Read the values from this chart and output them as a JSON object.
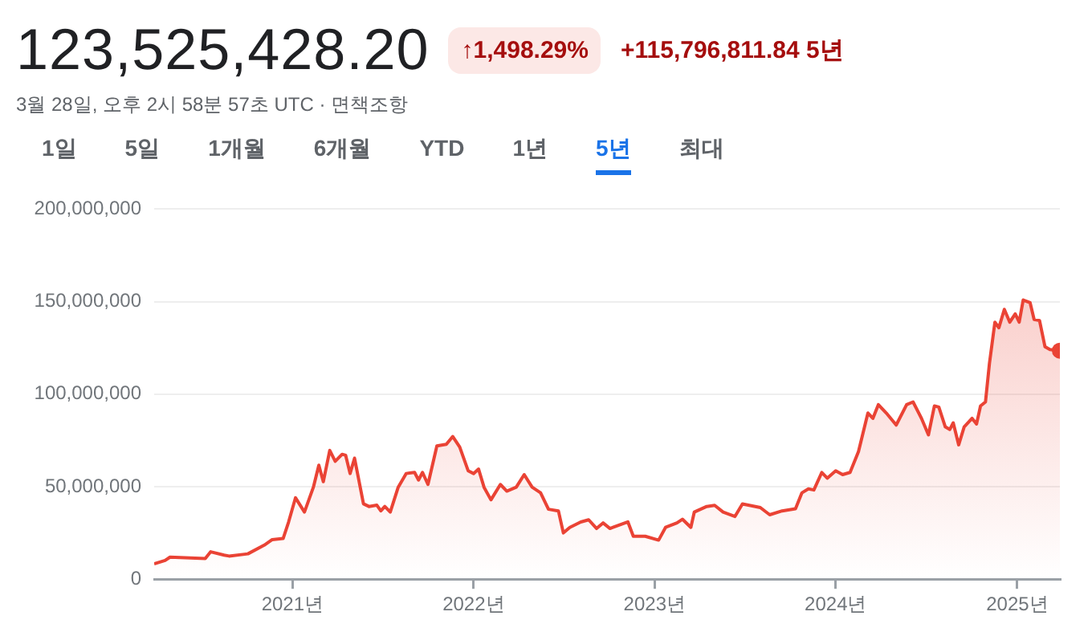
{
  "chart_data": {
    "type": "area",
    "title": "123,525,428.20",
    "subtitle": "3월 28일, 오후 2시 58분 57초 UTC · 면책조항",
    "annotations": [
      "↑1,498.29%",
      "+115,796,811.84 5년",
      "1일",
      "5일",
      "1개월",
      "6개월",
      "YTD",
      "1년",
      "5년",
      "최대"
    ],
    "x": [
      "2020-03-28",
      "2020-04-19",
      "2020-04-29",
      "2020-07-09",
      "2020-07-20",
      "2020-08-16",
      "2020-08-26",
      "2020-10-03",
      "2020-11-05",
      "2020-11-21",
      "2020-12-13",
      "2020-12-24",
      "2021-01-07",
      "2021-01-25",
      "2021-02-12",
      "2021-02-23",
      "2021-03-04",
      "2021-03-17",
      "2021-03-28",
      "2021-04-11",
      "2021-04-18",
      "2021-04-27",
      "2021-05-06",
      "2021-05-24",
      "2021-06-04",
      "2021-06-20",
      "2021-06-28",
      "2021-07-06",
      "2021-07-17",
      "2021-08-02",
      "2021-08-18",
      "2021-09-04",
      "2021-09-12",
      "2021-09-20",
      "2021-10-01",
      "2021-10-19",
      "2021-11-07",
      "2021-11-20",
      "2021-12-04",
      "2021-12-21",
      "2022-01-01",
      "2022-01-11",
      "2022-01-22",
      "2022-02-05",
      "2022-02-24",
      "2022-03-09",
      "2022-03-28",
      "2022-04-13",
      "2022-04-29",
      "2022-05-16",
      "2022-06-01",
      "2022-06-21",
      "2022-07-01",
      "2022-07-14",
      "2022-08-05",
      "2022-08-21",
      "2022-09-06",
      "2022-09-19",
      "2022-10-03",
      "2022-11-08",
      "2022-11-19",
      "2022-12-13",
      "2023-01-09",
      "2023-01-23",
      "2023-02-15",
      "2023-02-26",
      "2023-03-15",
      "2023-03-22",
      "2023-04-16",
      "2023-05-02",
      "2023-05-19",
      "2023-06-12",
      "2023-06-27",
      "2023-08-02",
      "2023-08-21",
      "2023-09-15",
      "2023-10-12",
      "2023-10-25",
      "2023-11-07",
      "2023-11-18",
      "2023-12-04",
      "2023-12-15",
      "2024-01-01",
      "2024-01-15",
      "2024-01-30",
      "2024-02-16",
      "2024-03-06",
      "2024-03-16",
      "2024-03-27",
      "2024-04-12",
      "2024-05-02",
      "2024-05-23",
      "2024-06-05",
      "2024-06-22",
      "2024-07-06",
      "2024-07-18",
      "2024-07-27",
      "2024-08-09",
      "2024-08-18",
      "2024-08-25",
      "2024-09-05",
      "2024-09-16",
      "2024-10-02",
      "2024-10-11",
      "2024-10-19",
      "2024-10-29",
      "2024-11-06",
      "2024-11-17",
      "2024-11-25",
      "2024-12-06",
      "2024-12-17",
      "2024-12-28",
      "2025-01-05",
      "2025-01-13",
      "2025-01-27",
      "2025-02-04",
      "2025-02-15",
      "2025-02-26",
      "2025-03-08",
      "2025-03-28"
    ],
    "series": [
      {
        "color": "#ea4335",
        "values": [
          8300000,
          10100000,
          11900000,
          11200000,
          14800000,
          13000000,
          12500000,
          13700000,
          18400000,
          21400000,
          22000000,
          30900000,
          44000000,
          36300000,
          49700000,
          61600000,
          52700000,
          69600000,
          63700000,
          67500000,
          67000000,
          57100000,
          65400000,
          40700000,
          39300000,
          40000000,
          36900000,
          39300000,
          36300000,
          49700000,
          57100000,
          57700000,
          53600000,
          57700000,
          51200000,
          72000000,
          72900000,
          77100000,
          71400000,
          58600000,
          57100000,
          59500000,
          49700000,
          42900000,
          51200000,
          47600000,
          49700000,
          56500000,
          49700000,
          46700000,
          37800000,
          36900000,
          25000000,
          28000000,
          30900000,
          32100000,
          27400000,
          30400000,
          27400000,
          31000000,
          23200000,
          23200000,
          21100000,
          28000000,
          30400000,
          32400000,
          28000000,
          36300000,
          39300000,
          39900000,
          36300000,
          33900000,
          40700000,
          38700000,
          34800000,
          36900000,
          38100000,
          46700000,
          48800000,
          48200000,
          57700000,
          54600000,
          58600000,
          56500000,
          57700000,
          69000000,
          89800000,
          86900000,
          94300000,
          89800000,
          83300000,
          94300000,
          95800000,
          86900000,
          78000000,
          93600000,
          93000000,
          82300000,
          80900000,
          84500000,
          72600000,
          82300000,
          86900000,
          83900000,
          93600000,
          95800000,
          116600000,
          138900000,
          135900000,
          145800000,
          138900000,
          143400000,
          138900000,
          150900000,
          149400000,
          140400000,
          139800000,
          125600000,
          124100000,
          123500000
        ]
      }
    ],
    "xlim": [
      "2020-03-28",
      "2025-03-28"
    ],
    "xticks": [
      {
        "value": "2021-01-01",
        "label": "2021년"
      },
      {
        "value": "2022-01-01",
        "label": "2022년"
      },
      {
        "value": "2023-01-01",
        "label": "2023년"
      },
      {
        "value": "2024-01-01",
        "label": "2024년"
      },
      {
        "value": "2025-01-01",
        "label": "2025년"
      }
    ],
    "ylim": [
      0,
      200000000
    ],
    "yticks": [
      0,
      {
        "value": 50000000,
        "label": "50,000,000"
      },
      {
        "value": 100000000,
        "label": "100,000,000"
      },
      {
        "value": 150000000,
        "label": "150,000,000"
      },
      {
        "value": 200000000,
        "label": "200,000,000"
      }
    ],
    "grid": "y",
    "legend": false,
    "marker": "none",
    "line_style": "solid"
  }
}
